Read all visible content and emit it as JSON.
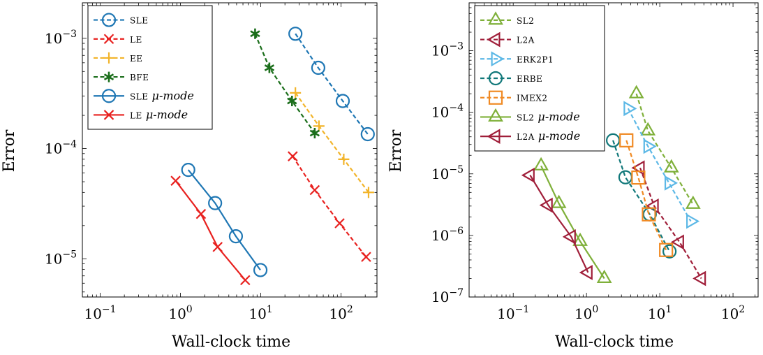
{
  "chart_data": [
    {
      "type": "line",
      "xscale": "log",
      "yscale": "log",
      "xlabel": "Wall-clock time",
      "ylabel": "Error",
      "xlim": [
        0.06,
        280
      ],
      "ylim": [
        4.5e-06,
        0.0021
      ],
      "xticks": [
        {
          "base": "10",
          "exp": "−1",
          "v": 0.1
        },
        {
          "base": "10",
          "exp": "0",
          "v": 1
        },
        {
          "base": "10",
          "exp": "1",
          "v": 10
        },
        {
          "base": "10",
          "exp": "2",
          "v": 100
        }
      ],
      "yticks": [
        {
          "base": "10",
          "exp": "−5",
          "v": 1e-05
        },
        {
          "base": "10",
          "exp": "−4",
          "v": 0.0001
        },
        {
          "base": "10",
          "exp": "−3",
          "v": 0.001
        }
      ],
      "legend_position": "top-left",
      "series": [
        {
          "name": "SLE",
          "mu": "",
          "color": "#1f77b4",
          "dash": true,
          "marker": "circle",
          "x": [
            27,
            52,
            105,
            215
          ],
          "y": [
            0.0011,
            0.00054,
            0.00027,
            0.000135
          ]
        },
        {
          "name": "LE",
          "mu": "",
          "color": "#e8211f",
          "dash": true,
          "marker": "x",
          "x": [
            25,
            47,
            96,
            205
          ],
          "y": [
            8.5e-05,
            4.2e-05,
            2.1e-05,
            1.04e-05
          ]
        },
        {
          "name": "EE",
          "mu": "",
          "color": "#f2b42a",
          "dash": true,
          "marker": "plus",
          "x": [
            27,
            53,
            108,
            220
          ],
          "y": [
            0.00032,
            0.00016,
            8e-05,
            4e-05
          ]
        },
        {
          "name": "BFE",
          "mu": "",
          "color": "#1b6e1b",
          "dash": true,
          "marker": "asterisk",
          "x": [
            8.5,
            12.8,
            24.5,
            47
          ],
          "y": [
            0.0011,
            0.00054,
            0.00027,
            0.000138
          ]
        },
        {
          "name": "SLE",
          "mu": "μ-mode",
          "color": "#1f77b4",
          "dash": false,
          "marker": "circle",
          "x": [
            1.25,
            2.7,
            4.9,
            9.9
          ],
          "y": [
            6.4e-05,
            3.2e-05,
            1.6e-05,
            7.9e-06
          ]
        },
        {
          "name": "LE",
          "mu": "μ-mode",
          "color": "#e8211f",
          "dash": false,
          "marker": "x",
          "x": [
            0.87,
            1.8,
            2.9,
            6.4
          ],
          "y": [
            5.1e-05,
            2.55e-05,
            1.28e-05,
            6.4e-06
          ]
        }
      ]
    },
    {
      "type": "line",
      "xscale": "log",
      "yscale": "log",
      "xlabel": "Wall-clock time",
      "ylabel": "Error",
      "xlim": [
        0.025,
        220
      ],
      "ylim": [
        1e-07,
        0.006
      ],
      "xticks": [
        {
          "base": "10",
          "exp": "−1",
          "v": 0.1
        },
        {
          "base": "10",
          "exp": "0",
          "v": 1
        },
        {
          "base": "10",
          "exp": "1",
          "v": 10
        },
        {
          "base": "10",
          "exp": "2",
          "v": 100
        }
      ],
      "yticks": [
        {
          "base": "10",
          "exp": "−7",
          "v": 1e-07
        },
        {
          "base": "10",
          "exp": "−6",
          "v": 1e-06
        },
        {
          "base": "10",
          "exp": "−5",
          "v": 1e-05
        },
        {
          "base": "10",
          "exp": "−4",
          "v": 0.0001
        },
        {
          "base": "10",
          "exp": "−3",
          "v": 0.001
        }
      ],
      "legend_position": "top-left",
      "series": [
        {
          "name": "SL2",
          "mu": "",
          "color": "#7fb03a",
          "dash": true,
          "marker": "triangle-up",
          "x": [
            4.8,
            6.9,
            14.4,
            28.5
          ],
          "y": [
            0.0002,
            5e-05,
            1.25e-05,
            3.2e-06
          ]
        },
        {
          "name": "L2A",
          "mu": "",
          "color": "#a01f3a",
          "dash": true,
          "marker": "triangle-left",
          "x": [
            5.4,
            8.4,
            18.6,
            37
          ],
          "y": [
            1.25e-05,
            3e-06,
            7.8e-07,
            2e-07
          ]
        },
        {
          "name": "ERK2P1",
          "mu": "",
          "color": "#5cb8e6",
          "dash": true,
          "marker": "triangle-right",
          "x": [
            3.7,
            6.9,
            13.4,
            26.5
          ],
          "y": [
            0.000115,
            2.8e-05,
            7.1e-06,
            1.7e-06
          ]
        },
        {
          "name": "ERBE",
          "mu": "",
          "color": "#11787a",
          "dash": true,
          "marker": "circle",
          "x": [
            2.3,
            3.4,
            7.3,
            13.6
          ],
          "y": [
            3.5e-05,
            8.8e-06,
            2.2e-06,
            5.5e-07
          ]
        },
        {
          "name": "IMEX2",
          "mu": "",
          "color": "#f08a24",
          "dash": true,
          "marker": "square",
          "x": [
            3.5,
            5.1,
            7.1,
            12.2
          ],
          "y": [
            3.5e-05,
            8.7e-06,
            2.2e-06,
            5.8e-07
          ]
        },
        {
          "name": "SL2",
          "mu": "μ-mode",
          "color": "#7fb03a",
          "dash": false,
          "marker": "triangle-up",
          "x": [
            0.24,
            0.42,
            0.82,
            1.75
          ],
          "y": [
            1.35e-05,
            3.3e-06,
            8e-07,
            2e-07
          ]
        },
        {
          "name": "L2A",
          "mu": "μ-mode",
          "color": "#a01f3a",
          "dash": false,
          "marker": "triangle-left",
          "x": [
            0.17,
            0.3,
            0.62,
            1.05
          ],
          "y": [
            9.5e-06,
            3.1e-06,
            9.5e-07,
            2.5e-07
          ]
        }
      ]
    }
  ]
}
